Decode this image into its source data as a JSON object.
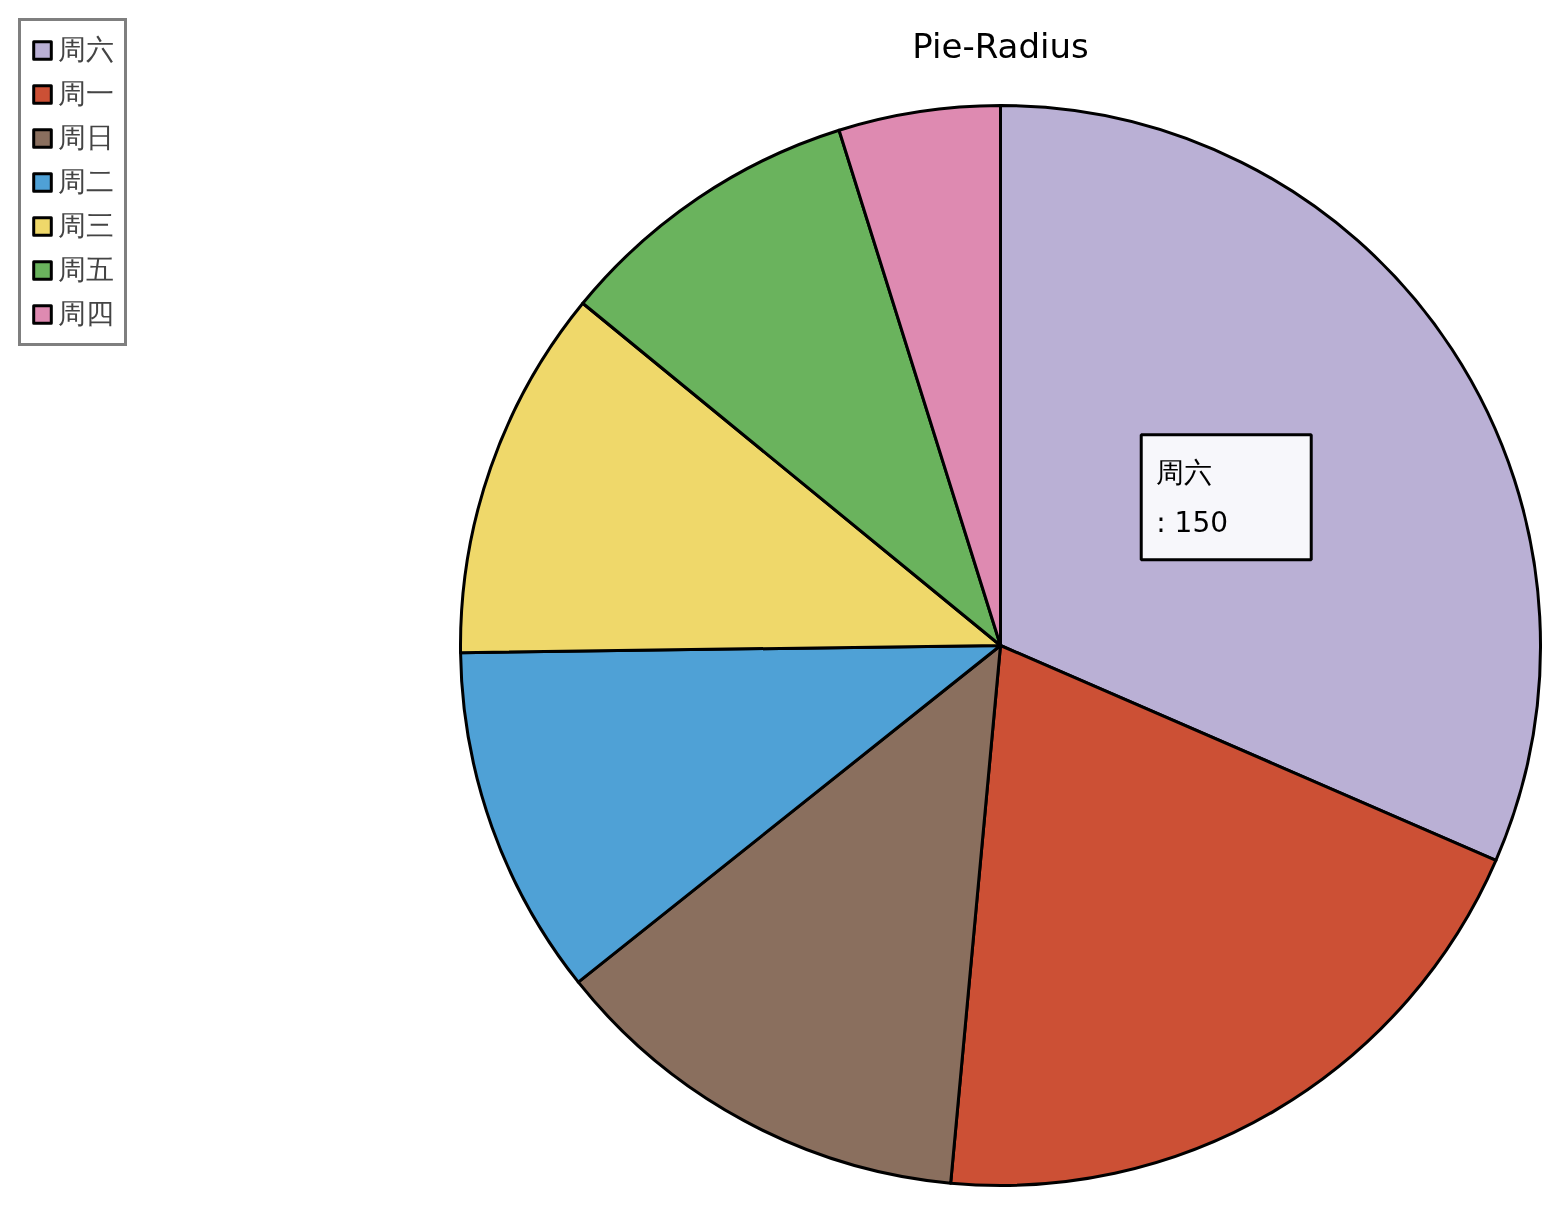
{
  "chart_data": {
    "type": "pie",
    "title": "Pie-Radius",
    "categories": [
      "周六",
      "周一",
      "周日",
      "周二",
      "周三",
      "周五",
      "周四"
    ],
    "values": [
      150,
      95,
      61,
      50,
      53,
      44,
      23
    ],
    "colors": [
      "#bab0d5",
      "#cc5035",
      "#8a6f5e",
      "#4fa1d6",
      "#efd86a",
      "#6ab35d",
      "#de8ab1"
    ],
    "value_labels": [
      ": 150",
      null,
      null,
      null,
      null,
      null,
      null
    ],
    "legend": "top left"
  }
}
